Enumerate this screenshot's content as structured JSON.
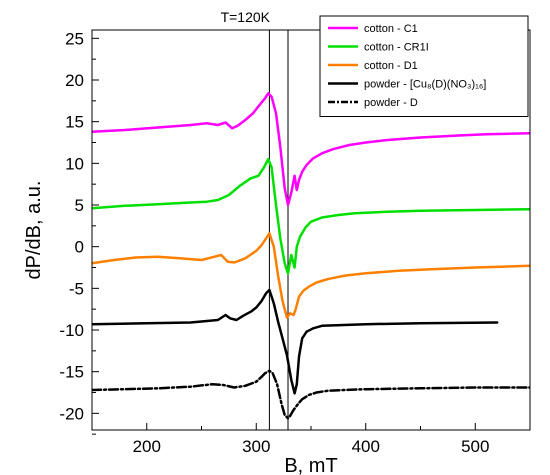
{
  "chart_data": {
    "type": "line",
    "annotation": "T=120K",
    "xlabel": "B, mT",
    "ylabel": "dP/dB, a.u.",
    "xlim": [
      150,
      550
    ],
    "ylim": [
      -22,
      26
    ],
    "x_ticks": [
      200,
      300,
      400,
      500
    ],
    "y_ticks": [
      -20,
      -15,
      -10,
      -5,
      0,
      5,
      10,
      15,
      20,
      25
    ],
    "x_tick_labels": [
      "200",
      "300",
      "400",
      "500"
    ],
    "y_tick_labels": [
      "-20",
      "-15",
      "-10",
      "-5",
      "0",
      "5",
      "10",
      "15",
      "20",
      "25"
    ],
    "grid": false,
    "legend_position": "top-right",
    "reference_lines_x": [
      312,
      329
    ],
    "series": [
      {
        "name": "cotton - C1",
        "color": "#ff00ff",
        "dash": "solid",
        "x": [
          150,
          180,
          210,
          240,
          255,
          265,
          272,
          278,
          283,
          290,
          297,
          303,
          308,
          311,
          314,
          318,
          322,
          326,
          329,
          332,
          335,
          337,
          339,
          342,
          346,
          352,
          360,
          370,
          385,
          400,
          420,
          450,
          480,
          510,
          550
        ],
        "y": [
          13.8,
          14.0,
          14.3,
          14.6,
          14.8,
          14.6,
          14.9,
          14.2,
          14.5,
          15.2,
          16.0,
          17.0,
          17.8,
          18.4,
          18.0,
          16.0,
          12.0,
          7.0,
          5.0,
          6.5,
          8.5,
          6.8,
          8.0,
          9.0,
          9.8,
          10.6,
          11.2,
          11.7,
          12.2,
          12.5,
          12.8,
          13.1,
          13.3,
          13.5,
          13.6
        ]
      },
      {
        "name": "cotton - CR1I",
        "color": "#00e000",
        "dash": "solid",
        "x": [
          150,
          180,
          210,
          240,
          255,
          265,
          275,
          285,
          295,
          302,
          307,
          311,
          314,
          318,
          322,
          326,
          329,
          332,
          335,
          337,
          340,
          345,
          350,
          360,
          375,
          390,
          420,
          450,
          500,
          550
        ],
        "y": [
          4.6,
          4.9,
          5.1,
          5.3,
          5.4,
          5.6,
          6.2,
          7.3,
          8.2,
          8.5,
          9.5,
          10.5,
          9.5,
          5.0,
          1.0,
          -2.0,
          -3.2,
          -1.0,
          -2.5,
          0.0,
          1.2,
          2.3,
          3.0,
          3.5,
          3.8,
          4.0,
          4.2,
          4.3,
          4.4,
          4.5
        ]
      },
      {
        "name": "cotton - D1",
        "color": "#ff8000",
        "dash": "solid",
        "x": [
          150,
          170,
          190,
          210,
          230,
          250,
          262,
          268,
          274,
          280,
          290,
          300,
          305,
          309,
          312,
          316,
          320,
          324,
          328,
          331,
          334,
          336,
          339,
          343,
          348,
          355,
          365,
          380,
          400,
          430,
          460,
          500,
          550
        ],
        "y": [
          -2.0,
          -1.6,
          -1.3,
          -1.2,
          -1.4,
          -1.6,
          -1.2,
          -1.0,
          -1.8,
          -1.9,
          -1.4,
          -0.5,
          0.2,
          1.0,
          1.6,
          0.0,
          -3.5,
          -6.5,
          -8.5,
          -8.0,
          -8.2,
          -7.5,
          -6.0,
          -5.3,
          -4.8,
          -4.3,
          -3.9,
          -3.5,
          -3.2,
          -2.9,
          -2.7,
          -2.5,
          -2.3
        ]
      },
      {
        "name": "powder - [Cu₈(D)(NO₃)₁₆]",
        "color": "#000000",
        "dash": "solid",
        "x": [
          150,
          200,
          240,
          265,
          272,
          276,
          282,
          288,
          295,
          300,
          305,
          309,
          312,
          316,
          320,
          324,
          328,
          332,
          335,
          337,
          339,
          342,
          346,
          352,
          360,
          380,
          400,
          450,
          520
        ],
        "y": [
          -9.3,
          -9.2,
          -9.1,
          -8.8,
          -8.2,
          -8.6,
          -8.8,
          -8.3,
          -7.8,
          -7.3,
          -6.5,
          -5.6,
          -5.2,
          -6.8,
          -9.0,
          -11.0,
          -13.0,
          -16.0,
          -17.6,
          -16.5,
          -13.2,
          -11.0,
          -10.2,
          -9.8,
          -9.5,
          -9.4,
          -9.3,
          -9.2,
          -9.1
        ]
      },
      {
        "name": "powder - D",
        "color": "#000000",
        "dash": "dashdot",
        "x": [
          150,
          180,
          210,
          240,
          260,
          270,
          280,
          290,
          300,
          305,
          308,
          312,
          315,
          319,
          323,
          326,
          329,
          331,
          334,
          338,
          342,
          348,
          355,
          365,
          380,
          400,
          450,
          500,
          550
        ],
        "y": [
          -17.2,
          -17.1,
          -17.0,
          -16.8,
          -16.5,
          -16.6,
          -16.9,
          -16.7,
          -16.2,
          -15.6,
          -15.2,
          -14.9,
          -15.2,
          -16.5,
          -18.8,
          -20.2,
          -20.6,
          -20.3,
          -19.6,
          -18.9,
          -18.3,
          -17.8,
          -17.5,
          -17.3,
          -17.2,
          -17.1,
          -17.0,
          -16.9,
          -16.9
        ]
      }
    ]
  }
}
